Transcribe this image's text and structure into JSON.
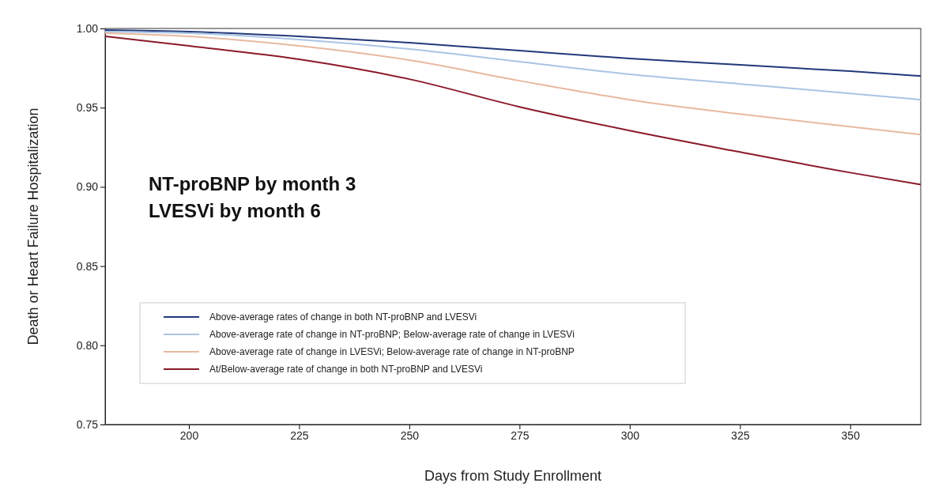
{
  "chart_data": {
    "type": "line",
    "xlabel": "Days from Study Enrollment",
    "ylabel": "Death or Heart Failure Hospitalization",
    "x": [
      181,
      200,
      225,
      250,
      275,
      300,
      325,
      350,
      366
    ],
    "series": [
      {
        "name": "Above-average rates of change in both NT-proBNP and LVESVi",
        "color": "#22397a",
        "values": [
          0.999,
          0.998,
          0.995,
          0.991,
          0.986,
          0.981,
          0.977,
          0.973,
          0.97
        ]
      },
      {
        "name": "Above-average rate of change in NT-proBNP; Below-average rate of change in LVESVi",
        "color": "#a9c4e4",
        "values": [
          0.998,
          0.997,
          0.993,
          0.987,
          0.979,
          0.971,
          0.965,
          0.959,
          0.955
        ]
      },
      {
        "name": "Above-average rate of change in LVESVi; Below-average rate of change in NT-proBNP",
        "color": "#e8b9a0",
        "values": [
          0.997,
          0.995,
          0.989,
          0.98,
          0.967,
          0.955,
          0.946,
          0.938,
          0.933
        ]
      },
      {
        "name": "At/Below-average rate of change in both NT-proBNP and LVESVi",
        "color": "#8b1a2a",
        "values": [
          0.995,
          0.989,
          0.9805,
          0.968,
          0.9505,
          0.9355,
          0.922,
          0.909,
          0.9015
        ]
      }
    ],
    "annotations": [
      "NT-proBNP by month 3",
      "LVESVi by month 6"
    ],
    "xlim": [
      181,
      366
    ],
    "xticks": [
      200,
      225,
      250,
      275,
      300,
      325,
      350
    ],
    "ylim": [
      0.75,
      1.0
    ],
    "yticks": [
      {
        "value": 0.75,
        "label": "0.75"
      },
      {
        "value": 0.8,
        "label": "0.80"
      },
      {
        "value": 0.85,
        "label": "0.85"
      },
      {
        "value": 0.9,
        "label": "0.90"
      },
      {
        "value": 0.95,
        "label": "0.95"
      },
      {
        "value": 1.0,
        "label": "1.00"
      }
    ],
    "grid": false,
    "legend": "bottom left",
    "marker": "none",
    "line_style": "solid"
  }
}
